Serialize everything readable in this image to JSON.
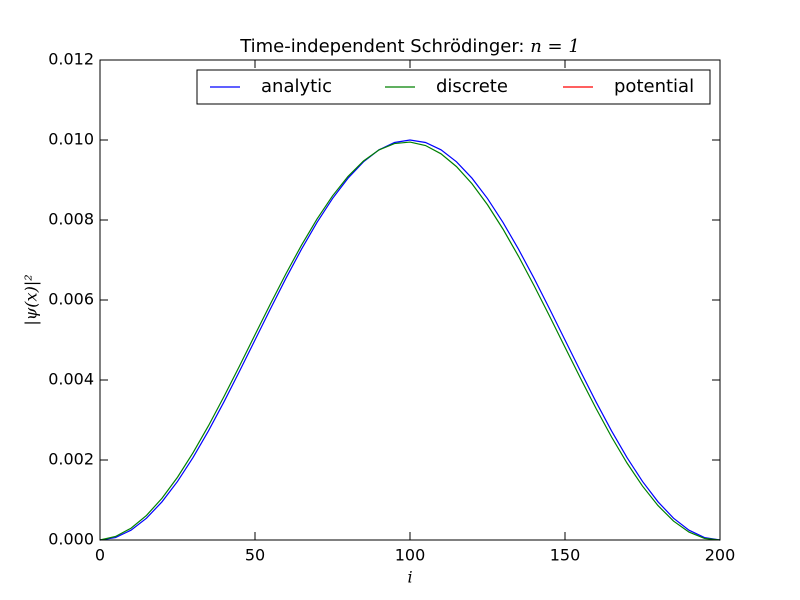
{
  "chart_data": {
    "type": "line",
    "title": "Time-independent Schrödinger:",
    "title_math": "n = 1",
    "xlabel": "i",
    "ylabel": "|ψ(x)|²",
    "x": [
      0,
      5,
      10,
      15,
      20,
      25,
      30,
      35,
      40,
      45,
      50,
      55,
      60,
      65,
      70,
      75,
      80,
      85,
      90,
      95,
      100,
      105,
      110,
      115,
      120,
      125,
      130,
      135,
      140,
      145,
      150,
      155,
      160,
      165,
      170,
      175,
      180,
      185,
      190,
      195,
      200
    ],
    "series": [
      {
        "name": "analytic",
        "color": "#0000ff",
        "values": [
          0,
          6.16e-05,
          0.000245,
          0.000545,
          0.000955,
          0.001464,
          0.002061,
          0.00273,
          0.003455,
          0.004218,
          0.005,
          0.005782,
          0.006545,
          0.00727,
          0.007939,
          0.008536,
          0.009045,
          0.009455,
          0.009755,
          0.009938,
          0.01,
          0.009938,
          0.009755,
          0.009455,
          0.009045,
          0.008536,
          0.007939,
          0.00727,
          0.006545,
          0.005782,
          0.005,
          0.004218,
          0.003455,
          0.00273,
          0.002061,
          0.001464,
          0.000955,
          0.000545,
          0.000245,
          6.16e-05,
          0
        ]
      },
      {
        "name": "discrete",
        "color": "#008000",
        "values": [
          0,
          8.8e-05,
          0.000294,
          0.000615,
          0.001044,
          0.001569,
          0.002179,
          0.002857,
          0.003587,
          0.004351,
          0.005131,
          0.005907,
          0.00666,
          0.007371,
          0.008024,
          0.008602,
          0.00909,
          0.009476,
          0.009752,
          0.009911,
          0.009948,
          0.009862,
          0.009655,
          0.009335,
          0.008906,
          0.008381,
          0.007772,
          0.007093,
          0.006363,
          0.005599,
          0.004819,
          0.004043,
          0.00329,
          0.002578,
          0.001925,
          0.001348,
          0.00086,
          0.000473,
          0.000198,
          3.9e-05,
          0
        ]
      },
      {
        "name": "potential",
        "color": "#ff0000",
        "values": [
          null,
          null,
          null,
          null,
          null,
          null,
          null,
          null,
          null,
          null,
          null,
          null,
          null,
          null,
          null,
          null,
          null,
          null,
          null,
          null,
          null,
          null,
          null,
          null,
          null,
          null,
          null,
          null,
          null,
          null,
          null,
          null,
          null,
          null,
          null,
          null,
          null,
          null,
          null,
          null,
          null
        ]
      }
    ],
    "xlim": [
      0,
      200
    ],
    "xticks": [
      0,
      50,
      100,
      150,
      200
    ],
    "ylim": [
      0,
      0.012
    ],
    "yticks": [
      {
        "value": 0,
        "label": "0.000"
      },
      {
        "value": 0.002,
        "label": "0.002"
      },
      {
        "value": 0.004,
        "label": "0.004"
      },
      {
        "value": 0.006,
        "label": "0.006"
      },
      {
        "value": 0.008,
        "label": "0.008"
      },
      {
        "value": 0.01,
        "label": "0.010"
      },
      {
        "value": 0.012,
        "label": "0.012"
      }
    ],
    "legend": "upper right",
    "grid": false
  }
}
